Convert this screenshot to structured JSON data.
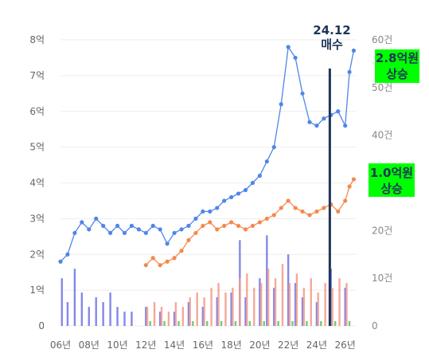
{
  "chart_data": {
    "type": "line",
    "x_labels": [
      "06년",
      "08년",
      "10년",
      "12년",
      "14년",
      "16년",
      "18년",
      "20년",
      "22년",
      "24년",
      "26년"
    ],
    "y_left": {
      "ticks": [
        "0",
        "1억",
        "2억",
        "3억",
        "4억",
        "5억",
        "6억",
        "7억",
        "8억"
      ],
      "range": [
        0,
        8
      ]
    },
    "y_right": {
      "ticks": [
        "0",
        "10건",
        "20건",
        "30건",
        "40건",
        "50건",
        "60건"
      ],
      "range": [
        0,
        60
      ]
    },
    "grid": true,
    "series": [
      {
        "color": "#4f86e8",
        "points": [
          [
            2006.0,
            1.8
          ],
          [
            2006.5,
            2.0
          ],
          [
            2007.0,
            2.6
          ],
          [
            2007.5,
            2.9
          ],
          [
            2008.0,
            2.7
          ],
          [
            2008.5,
            3.0
          ],
          [
            2009.0,
            2.8
          ],
          [
            2009.5,
            2.6
          ],
          [
            2010.0,
            2.8
          ],
          [
            2010.5,
            2.6
          ],
          [
            2011.0,
            2.8
          ],
          [
            2011.5,
            2.7
          ],
          [
            2012.0,
            2.6
          ],
          [
            2012.5,
            2.8
          ],
          [
            2013.0,
            2.7
          ],
          [
            2013.5,
            2.3
          ],
          [
            2014.0,
            2.6
          ],
          [
            2014.5,
            2.7
          ],
          [
            2015.0,
            2.8
          ],
          [
            2015.5,
            3.0
          ],
          [
            2016.0,
            3.2
          ],
          [
            2016.5,
            3.2
          ],
          [
            2017.0,
            3.3
          ],
          [
            2017.5,
            3.5
          ],
          [
            2018.0,
            3.6
          ],
          [
            2018.5,
            3.7
          ],
          [
            2019.0,
            3.8
          ],
          [
            2019.5,
            4.0
          ],
          [
            2020.0,
            4.2
          ],
          [
            2020.5,
            4.6
          ],
          [
            2021.0,
            5.0
          ],
          [
            2021.5,
            6.2
          ],
          [
            2022.0,
            7.8
          ],
          [
            2022.5,
            7.5
          ],
          [
            2023.0,
            6.5
          ],
          [
            2023.5,
            5.7
          ],
          [
            2024.0,
            5.6
          ],
          [
            2024.5,
            5.8
          ],
          [
            2025.0,
            5.9
          ],
          [
            2025.5,
            6.0
          ],
          [
            2026.0,
            5.6
          ],
          [
            2026.3,
            7.1
          ],
          [
            2026.6,
            7.7
          ]
        ]
      },
      {
        "color": "#f4894d",
        "points": [
          [
            2012.0,
            1.7
          ],
          [
            2012.5,
            1.9
          ],
          [
            2013.0,
            1.7
          ],
          [
            2013.5,
            1.8
          ],
          [
            2014.0,
            1.9
          ],
          [
            2014.5,
            2.1
          ],
          [
            2015.0,
            2.4
          ],
          [
            2015.5,
            2.6
          ],
          [
            2016.0,
            2.8
          ],
          [
            2016.5,
            2.9
          ],
          [
            2017.0,
            2.7
          ],
          [
            2017.5,
            2.8
          ],
          [
            2018.0,
            2.9
          ],
          [
            2018.5,
            2.8
          ],
          [
            2019.0,
            2.7
          ],
          [
            2019.5,
            2.8
          ],
          [
            2020.0,
            2.9
          ],
          [
            2020.5,
            3.0
          ],
          [
            2021.0,
            3.1
          ],
          [
            2021.5,
            3.3
          ],
          [
            2022.0,
            3.5
          ],
          [
            2022.5,
            3.3
          ],
          [
            2023.0,
            3.2
          ],
          [
            2023.5,
            3.1
          ],
          [
            2024.0,
            3.2
          ],
          [
            2024.5,
            3.3
          ],
          [
            2025.0,
            3.4
          ],
          [
            2025.5,
            3.2
          ],
          [
            2026.0,
            3.5
          ],
          [
            2026.3,
            3.9
          ],
          [
            2026.6,
            4.1
          ]
        ]
      }
    ],
    "volume_bars": {
      "axis": "right",
      "series": [
        {
          "color": "#6f73e6",
          "points": [
            [
              2006.1,
              10
            ],
            [
              2006.5,
              5
            ],
            [
              2007.0,
              12
            ],
            [
              2007.5,
              7
            ],
            [
              2008.0,
              4
            ],
            [
              2008.5,
              6
            ],
            [
              2009.0,
              5
            ],
            [
              2009.5,
              7
            ],
            [
              2010.0,
              4
            ],
            [
              2010.5,
              3
            ],
            [
              2011.0,
              3
            ],
            [
              2012.0,
              4
            ],
            [
              2013.0,
              3
            ],
            [
              2014.0,
              3
            ],
            [
              2015.0,
              5
            ],
            [
              2016.0,
              4
            ],
            [
              2017.0,
              6
            ],
            [
              2018.0,
              7
            ],
            [
              2018.6,
              18
            ],
            [
              2019.0,
              6
            ],
            [
              2020.0,
              10
            ],
            [
              2020.5,
              19
            ],
            [
              2021.0,
              8
            ],
            [
              2022.0,
              15
            ],
            [
              2022.5,
              9
            ],
            [
              2023.0,
              6
            ],
            [
              2024.0,
              5
            ],
            [
              2025.0,
              12
            ],
            [
              2026.0,
              8
            ]
          ]
        },
        {
          "color": "#f39a86",
          "points": [
            [
              2012.1,
              4
            ],
            [
              2012.6,
              5
            ],
            [
              2013.1,
              4
            ],
            [
              2013.6,
              3
            ],
            [
              2014.1,
              5
            ],
            [
              2014.6,
              4
            ],
            [
              2015.1,
              6
            ],
            [
              2015.6,
              7
            ],
            [
              2016.1,
              6
            ],
            [
              2016.6,
              8
            ],
            [
              2017.1,
              9
            ],
            [
              2017.6,
              7
            ],
            [
              2018.1,
              8
            ],
            [
              2018.6,
              10
            ],
            [
              2019.1,
              11
            ],
            [
              2019.6,
              8
            ],
            [
              2020.1,
              9
            ],
            [
              2020.6,
              12
            ],
            [
              2021.1,
              10
            ],
            [
              2021.6,
              13
            ],
            [
              2022.1,
              9
            ],
            [
              2022.6,
              11
            ],
            [
              2023.1,
              8
            ],
            [
              2023.6,
              10
            ],
            [
              2024.1,
              7
            ],
            [
              2024.6,
              9
            ],
            [
              2025.1,
              8
            ],
            [
              2025.6,
              10
            ],
            [
              2026.1,
              9
            ]
          ]
        },
        {
          "color": "#5cbf5c",
          "points": [
            [
              2012.3,
              1
            ],
            [
              2013.3,
              1
            ],
            [
              2014.3,
              1
            ],
            [
              2015.3,
              1
            ],
            [
              2016.3,
              1
            ],
            [
              2017.3,
              1
            ],
            [
              2018.3,
              1
            ],
            [
              2019.3,
              1
            ],
            [
              2020.3,
              1
            ],
            [
              2021.3,
              1
            ],
            [
              2022.3,
              1
            ],
            [
              2023.3,
              1
            ],
            [
              2024.3,
              1
            ],
            [
              2025.3,
              1
            ],
            [
              2026.3,
              1
            ]
          ]
        }
      ]
    },
    "marker": {
      "x": 2024.92,
      "label_lines": [
        "24.12",
        "매수"
      ],
      "color": "#1f3558"
    },
    "annotations": [
      {
        "lines": [
          "2.8억원",
          "상승"
        ],
        "background": "#00ff00"
      },
      {
        "lines": [
          "1.0억원",
          "상승"
        ],
        "background": "#00ff00"
      }
    ]
  }
}
